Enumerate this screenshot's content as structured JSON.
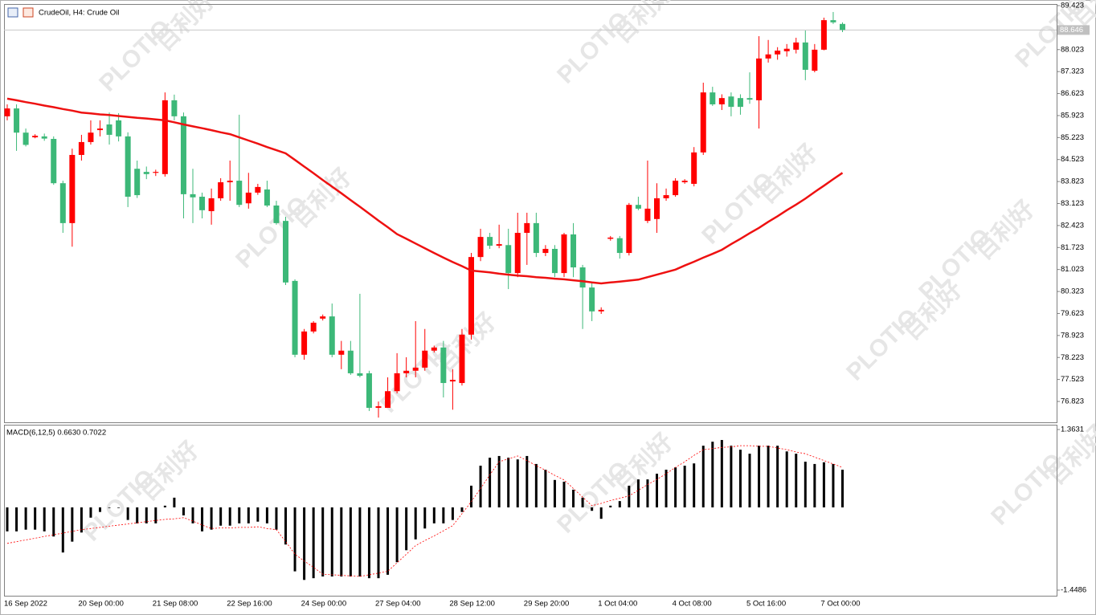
{
  "chart_data": [
    {
      "type": "candlestick",
      "title": "CrudeOil, H4:  Crude Oil",
      "up_color": "#ff0000",
      "down_color": "#3cb878",
      "open": [
        85.9,
        86.15,
        85.38,
        85.23,
        85.26,
        85.18,
        83.77,
        82.5,
        84.67,
        85.08,
        85.46,
        85.64,
        85.77,
        85.26,
        84.23,
        84.13,
        84.1,
        84.06,
        86.41,
        85.9,
        83.42,
        83.34,
        82.88,
        83.29,
        83.8,
        83.85,
        83.13,
        83.47,
        83.57,
        83.06,
        82.57,
        80.66,
        78.31,
        79.05,
        79.46,
        79.53,
        78.31,
        78.44,
        77.72,
        77.72,
        76.62,
        76.62,
        77.15,
        77.72,
        77.8,
        77.9,
        78.44,
        78.54,
        77.46,
        77.41,
        78.95,
        81.42,
        82.06,
        81.78,
        81.8,
        80.91,
        82.19,
        82.5,
        81.55,
        81.68,
        80.91,
        82.14,
        81.09,
        80.45,
        79.69,
        82.0,
        82.02,
        81.55,
        83.08,
        82.57,
        82.63,
        83.29,
        83.39,
        83.8,
        83.75,
        84.75,
        86.66,
        86.28,
        86.53,
        86.48,
        86.48,
        86.41,
        87.74,
        87.87,
        87.97,
        88.02,
        88.25,
        87.35,
        88.02,
        88.96,
        88.84
      ],
      "high": [
        86.28,
        86.28,
        85.51,
        85.33,
        85.35,
        85.26,
        83.85,
        84.87,
        85.31,
        85.77,
        85.77,
        86.02,
        86.0,
        85.39,
        84.49,
        84.3,
        84.2,
        86.66,
        86.59,
        86.02,
        84.23,
        83.47,
        83.6,
        83.93,
        84.49,
        85.95,
        84.1,
        83.75,
        83.85,
        83.21,
        82.7,
        80.71,
        79.13,
        79.38,
        79.59,
        79.94,
        78.75,
        78.75,
        80.25,
        77.8,
        76.82,
        77.59,
        78.36,
        78.23,
        79.38,
        79.13,
        78.6,
        78.75,
        77.85,
        79.13,
        81.55,
        82.32,
        82.19,
        82.45,
        82.32,
        82.83,
        82.83,
        82.83,
        81.8,
        81.8,
        82.19,
        82.5,
        81.17,
        80.61,
        79.82,
        82.09,
        82.09,
        83.14,
        83.34,
        84.49,
        83.77,
        83.6,
        83.93,
        83.9,
        84.92,
        86.97,
        86.84,
        86.6,
        86.66,
        86.6,
        87.3,
        88.45,
        88.33,
        88.1,
        88.2,
        88.4,
        88.63,
        88.2,
        89.04,
        89.22,
        88.89
      ],
      "low": [
        85.77,
        84.8,
        84.94,
        85.2,
        85.12,
        83.72,
        82.19,
        81.75,
        84.49,
        85.0,
        85.26,
        85.0,
        85.1,
        83.01,
        83.3,
        83.9,
        84.0,
        83.98,
        85.77,
        82.65,
        82.5,
        82.65,
        82.45,
        83.21,
        83.21,
        83.01,
        82.96,
        83.4,
        83.01,
        82.45,
        80.53,
        78.23,
        78.15,
        78.99,
        79.4,
        78.23,
        77.85,
        77.67,
        77.59,
        76.52,
        76.31,
        76.62,
        77.08,
        77.59,
        77.59,
        77.8,
        78.38,
        76.95,
        76.56,
        77.33,
        78.79,
        81.29,
        81.68,
        81.7,
        80.4,
        80.78,
        81.17,
        81.42,
        81.45,
        80.78,
        80.78,
        80.78,
        79.13,
        79.38,
        79.61,
        81.94,
        81.37,
        81.47,
        82.91,
        82.5,
        82.19,
        83.21,
        83.34,
        83.75,
        83.67,
        84.67,
        86.23,
        86.1,
        85.9,
        85.95,
        86.3,
        85.51,
        87.61,
        87.7,
        87.8,
        87.9,
        87.05,
        87.3,
        88.0,
        88.84,
        88.58
      ],
      "close": [
        86.15,
        85.38,
        84.99,
        85.28,
        85.19,
        83.77,
        82.5,
        84.67,
        85.08,
        85.38,
        85.51,
        85.31,
        85.26,
        83.34,
        83.39,
        84.06,
        84.13,
        86.41,
        85.9,
        83.42,
        83.32,
        82.91,
        83.29,
        83.8,
        83.85,
        83.08,
        83.47,
        83.65,
        83.06,
        82.5,
        80.61,
        78.31,
        79.05,
        79.33,
        79.53,
        78.31,
        78.44,
        77.72,
        77.64,
        76.62,
        76.67,
        77.15,
        77.72,
        77.8,
        77.9,
        78.44,
        78.54,
        77.41,
        77.51,
        78.95,
        81.42,
        82.06,
        81.78,
        81.83,
        80.91,
        82.19,
        82.5,
        81.55,
        81.68,
        80.91,
        82.14,
        81.09,
        80.45,
        79.69,
        79.74,
        82.04,
        81.55,
        83.08,
        82.96,
        82.96,
        83.29,
        83.39,
        83.85,
        83.85,
        84.75,
        86.66,
        86.28,
        86.48,
        86.2,
        86.2,
        86.43,
        87.74,
        87.87,
        87.99,
        88.05,
        88.25,
        87.38,
        88.02,
        88.96,
        88.89,
        88.65
      ],
      "overlay": {
        "color": "#ee1111",
        "values": [
          86.46,
          86.41,
          86.35,
          86.3,
          86.24,
          86.19,
          86.13,
          86.08,
          86.02,
          85.99,
          85.96,
          85.94,
          85.91,
          85.88,
          85.85,
          85.83,
          85.8,
          85.77,
          85.71,
          85.64,
          85.58,
          85.52,
          85.46,
          85.39,
          85.33,
          85.23,
          85.13,
          85.03,
          84.92,
          84.82,
          84.72,
          84.51,
          84.3,
          84.09,
          83.87,
          83.66,
          83.45,
          83.23,
          83.02,
          82.8,
          82.58,
          82.37,
          82.15,
          82.0,
          81.85,
          81.7,
          81.55,
          81.4,
          81.26,
          81.13,
          80.99,
          80.96,
          80.93,
          80.89,
          80.86,
          80.83,
          80.81,
          80.78,
          80.76,
          80.73,
          80.71,
          80.68,
          80.65,
          80.61,
          80.58,
          80.61,
          80.64,
          80.67,
          80.7,
          80.78,
          80.86,
          80.94,
          81.02,
          81.15,
          81.27,
          81.4,
          81.52,
          81.65,
          81.83,
          82.0,
          82.18,
          82.35,
          82.54,
          82.72,
          82.91,
          83.09,
          83.28,
          83.49,
          83.69,
          83.9,
          84.1
        ]
      },
      "last_price": 88.646,
      "ylim": [
        76.159,
        89.474
      ],
      "yticks": [
        76.823,
        77.523,
        78.223,
        78.923,
        79.623,
        80.323,
        81.023,
        81.723,
        82.423,
        83.123,
        83.823,
        84.523,
        85.223,
        85.923,
        86.623,
        87.323,
        88.023,
        89.423
      ]
    },
    {
      "type": "bar",
      "title": "MACD(6,12,5) 0.6630 0.7022",
      "color": "#000000",
      "values": [
        -0.42,
        -0.42,
        -0.39,
        -0.39,
        -0.42,
        -0.51,
        -0.79,
        -0.6,
        -0.44,
        -0.18,
        -0.08,
        -0.01,
        -0.01,
        -0.22,
        -0.28,
        -0.28,
        -0.28,
        0.03,
        0.17,
        -0.14,
        -0.28,
        -0.42,
        -0.39,
        -0.32,
        -0.32,
        -0.28,
        -0.28,
        -0.25,
        -0.28,
        -0.39,
        -0.65,
        -1.12,
        -1.27,
        -1.24,
        -1.21,
        -1.21,
        -1.21,
        -1.21,
        -1.21,
        -1.24,
        -1.24,
        -1.18,
        -0.96,
        -0.75,
        -0.56,
        -0.37,
        -0.28,
        -0.28,
        -0.22,
        -0.08,
        0.38,
        0.73,
        0.87,
        0.9,
        0.87,
        0.84,
        0.9,
        0.76,
        0.66,
        0.48,
        0.45,
        0.31,
        0.17,
        -0.06,
        -0.2,
        0.03,
        0.11,
        0.38,
        0.49,
        0.49,
        0.59,
        0.66,
        0.7,
        0.73,
        0.77,
        1.08,
        1.15,
        1.18,
        1.08,
        1.01,
        0.94,
        1.08,
        1.08,
        1.08,
        0.98,
        0.94,
        0.8,
        0.76,
        0.79,
        0.76,
        0.66
      ],
      "signal": {
        "color": "#ff0000",
        "values": [
          -0.63,
          -0.6,
          -0.57,
          -0.54,
          -0.51,
          -0.48,
          -0.45,
          -0.42,
          -0.39,
          -0.37,
          -0.35,
          -0.33,
          -0.31,
          -0.29,
          -0.27,
          -0.25,
          -0.23,
          -0.21,
          -0.2,
          -0.18,
          -0.24,
          -0.31,
          -0.37,
          -0.36,
          -0.36,
          -0.35,
          -0.35,
          -0.34,
          -0.37,
          -0.39,
          -0.6,
          -0.82,
          -0.94,
          -1.05,
          -1.17,
          -1.18,
          -1.19,
          -1.2,
          -1.21,
          -1.18,
          -1.15,
          -1.12,
          -0.97,
          -0.82,
          -0.67,
          -0.58,
          -0.5,
          -0.41,
          -0.32,
          -0.11,
          0.1,
          0.33,
          0.57,
          0.8,
          0.85,
          0.9,
          0.82,
          0.73,
          0.65,
          0.56,
          0.48,
          0.33,
          0.18,
          0.03,
          0.07,
          0.12,
          0.16,
          0.2,
          0.3,
          0.4,
          0.49,
          0.59,
          0.7,
          0.8,
          0.91,
          1.01,
          1.03,
          1.05,
          1.06,
          1.08,
          1.08,
          1.07,
          1.07,
          1.04,
          1.01,
          0.97,
          0.94,
          0.88,
          0.82,
          0.76,
          0.7
        ]
      },
      "categories": [
        "16 Sep 2022",
        null,
        null,
        null,
        null,
        null,
        null,
        null,
        "20 Sep 00:00",
        null,
        null,
        null,
        null,
        null,
        null,
        null,
        "21 Sep 08:00",
        null,
        null,
        null,
        null,
        null,
        null,
        null,
        "22 Sep 16:00",
        null,
        null,
        null,
        null,
        null,
        null,
        null,
        "24 Sep 00:00",
        null,
        null,
        null,
        null,
        null,
        null,
        null,
        "27 Sep 04:00",
        null,
        null,
        null,
        null,
        null,
        null,
        null,
        "28 Sep 12:00",
        null,
        null,
        null,
        null,
        null,
        null,
        null,
        "29 Sep 20:00",
        null,
        null,
        null,
        null,
        null,
        null,
        null,
        "1 Oct 04:00",
        null,
        null,
        null,
        null,
        null,
        null,
        null,
        "4 Oct 08:00",
        null,
        null,
        null,
        null,
        null,
        null,
        null,
        "5 Oct 16:00",
        null,
        null,
        null,
        null,
        null,
        null,
        null,
        "7 Oct 00:00",
        null,
        null
      ],
      "ylim": [
        -1.547,
        1.4475
      ],
      "yticks": [
        -1.4486,
        1.3631
      ]
    }
  ],
  "watermark": {
    "brand": "PLOTIO",
    "text": "百利好"
  }
}
